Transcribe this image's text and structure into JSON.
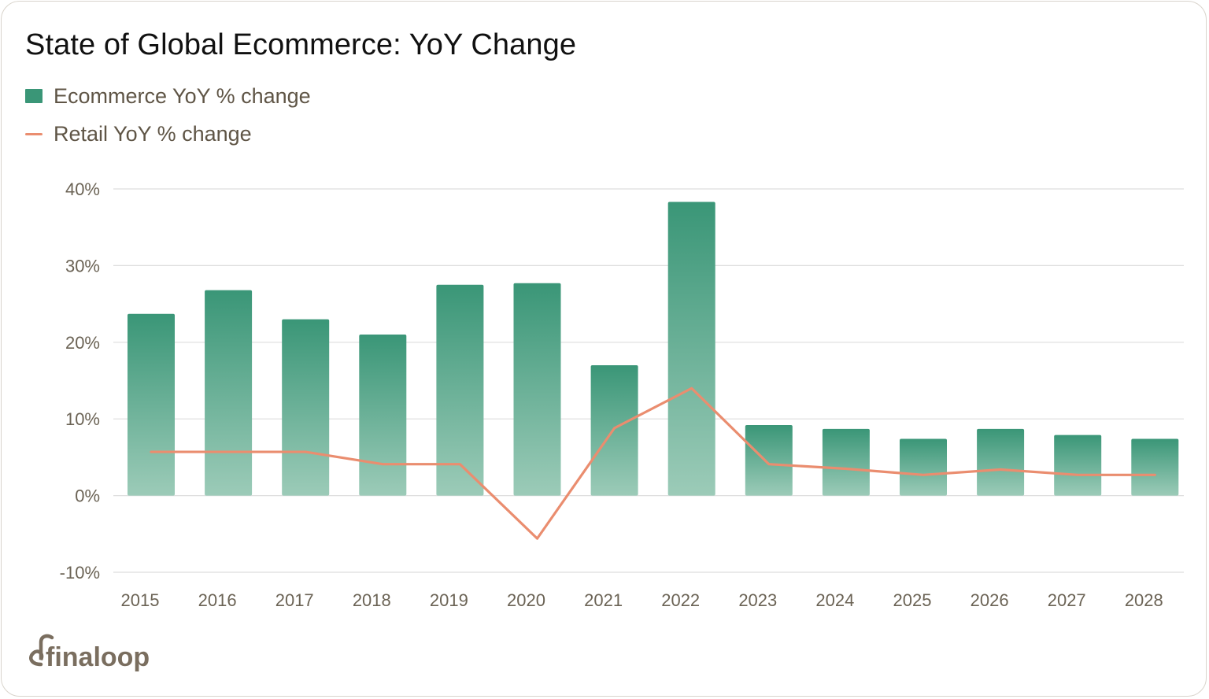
{
  "title": "State of Global Ecommerce: YoY Change",
  "legend": {
    "bar_label": "Ecommerce YoY % change",
    "line_label": "Retail YoY % change"
  },
  "brand": {
    "name": "finaloop"
  },
  "colors": {
    "bar_top": "#3a9677",
    "bar_bottom": "#9ccbb8",
    "line": "#ea8d6f",
    "grid": "#dedede",
    "tick_text": "#6b6355",
    "brand": "#7a6e5f"
  },
  "chart_data": {
    "type": "bar",
    "title": "State of Global Ecommerce: YoY Change",
    "categories": [
      "2015",
      "2016",
      "2017",
      "2018",
      "2019",
      "2020",
      "2021",
      "2022",
      "2023",
      "2024",
      "2025",
      "2026",
      "2027",
      "2028"
    ],
    "series": [
      {
        "name": "Ecommerce YoY % change",
        "type": "bar",
        "values": [
          23.7,
          26.8,
          23.0,
          21.0,
          27.5,
          27.7,
          17.0,
          38.3,
          9.2,
          8.7,
          7.4,
          8.7,
          7.9,
          7.4
        ]
      },
      {
        "name": "Retail YoY % change",
        "type": "line",
        "values": [
          5.7,
          5.7,
          5.7,
          4.1,
          4.1,
          -5.6,
          8.8,
          14.0,
          4.1,
          3.5,
          2.7,
          3.4,
          2.7,
          2.7
        ]
      }
    ],
    "yticks": [
      "40%",
      "30%",
      "20%",
      "10%",
      "0%",
      "-10%"
    ],
    "ytick_values": [
      40,
      30,
      20,
      10,
      0,
      -10
    ],
    "ylim": [
      -10,
      40
    ],
    "grid": true,
    "legend_position": "top-left"
  }
}
